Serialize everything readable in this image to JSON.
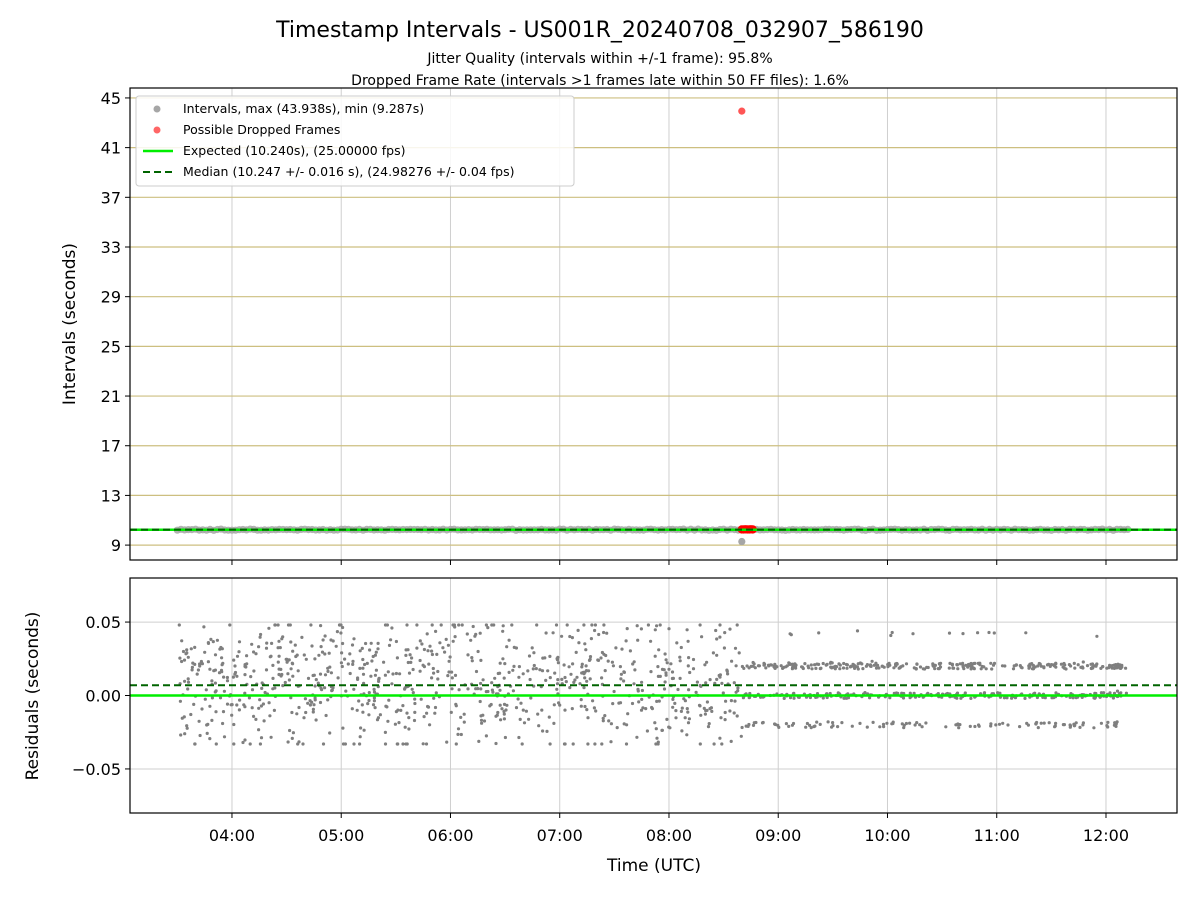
{
  "figure": {
    "title": "Timestamp Intervals - US001R_20240708_032907_586190",
    "subtitle_lines": [
      "Jitter Quality (intervals within +/-1 frame): 95.8%",
      "Dropped Frame Rate (intervals >1 frames late within 50 FF files): 1.6%"
    ]
  },
  "colors": {
    "scatter_top": "#a6a6a6",
    "scatter_bottom": "#7f7f7f",
    "dropped": "#ff0000",
    "expected": "#00ee00",
    "median": "#006400",
    "grid_top": "#cdbf80",
    "grid_bottom": "#cfcfcf"
  },
  "chart_data": [
    {
      "type": "scatter",
      "name": "intervals",
      "xlabel": "",
      "ylabel": "Intervals (seconds)",
      "x_range": [
        "03:04",
        "12:39"
      ],
      "ylim": [
        7.8,
        45.8
      ],
      "yticks": [
        9,
        13,
        17,
        21,
        25,
        29,
        33,
        37,
        41,
        45
      ],
      "xticks": [
        "04:00",
        "05:00",
        "06:00",
        "07:00",
        "08:00",
        "09:00",
        "10:00",
        "11:00",
        "12:00"
      ],
      "grid": true,
      "legend_position": "top-left",
      "legend": [
        "Intervals, max (43.938s), min (9.287s)",
        "Possible Dropped Frames",
        "Expected (10.240s), (25.00000 fps)",
        "Median (10.247 +/- 0.016 s), (24.98276 +/- 0.04 fps)"
      ],
      "series": [
        {
          "name": "Intervals, max (43.938s), min (9.287s)",
          "x_range": [
            "03:30",
            "12:12"
          ],
          "y_typical": 10.24,
          "outlier": {
            "x": "08:40",
            "y": 9.287
          }
        },
        {
          "name": "Possible Dropped Frames",
          "x": [
            "08:40",
            "08:41",
            "08:42",
            "08:43",
            "08:44",
            "08:45",
            "08:46",
            "08:40"
          ],
          "y": [
            10.26,
            10.26,
            10.27,
            10.26,
            10.26,
            10.27,
            10.26,
            43.938
          ]
        },
        {
          "name": "Expected (10.240s), (25.00000 fps)",
          "y": 10.24
        },
        {
          "name": "Median (10.247 +/- 0.016 s), (24.98276 +/- 0.04 fps)",
          "y": 10.247
        }
      ]
    },
    {
      "type": "scatter",
      "name": "residuals",
      "xlabel": "Time (UTC)",
      "ylabel": "Residuals (seconds)",
      "x_range": [
        "03:04",
        "12:39"
      ],
      "ylim": [
        -0.08,
        0.08
      ],
      "yticks": [
        -0.05,
        0.0,
        0.05
      ],
      "ytick_labels": [
        "−0.05",
        "0.00",
        "0.05"
      ],
      "xticks": [
        "04:00",
        "05:00",
        "06:00",
        "07:00",
        "08:00",
        "09:00",
        "10:00",
        "11:00",
        "12:00"
      ],
      "grid": true,
      "series": [
        {
          "name": "residuals",
          "x_range": [
            "03:30",
            "12:12"
          ],
          "y_range": [
            -0.033,
            0.048
          ],
          "levels_after_0840": [
            -0.02,
            0.0,
            0.02
          ]
        },
        {
          "name": "expected",
          "y": 0.0
        },
        {
          "name": "median",
          "y": 0.007
        }
      ]
    }
  ]
}
